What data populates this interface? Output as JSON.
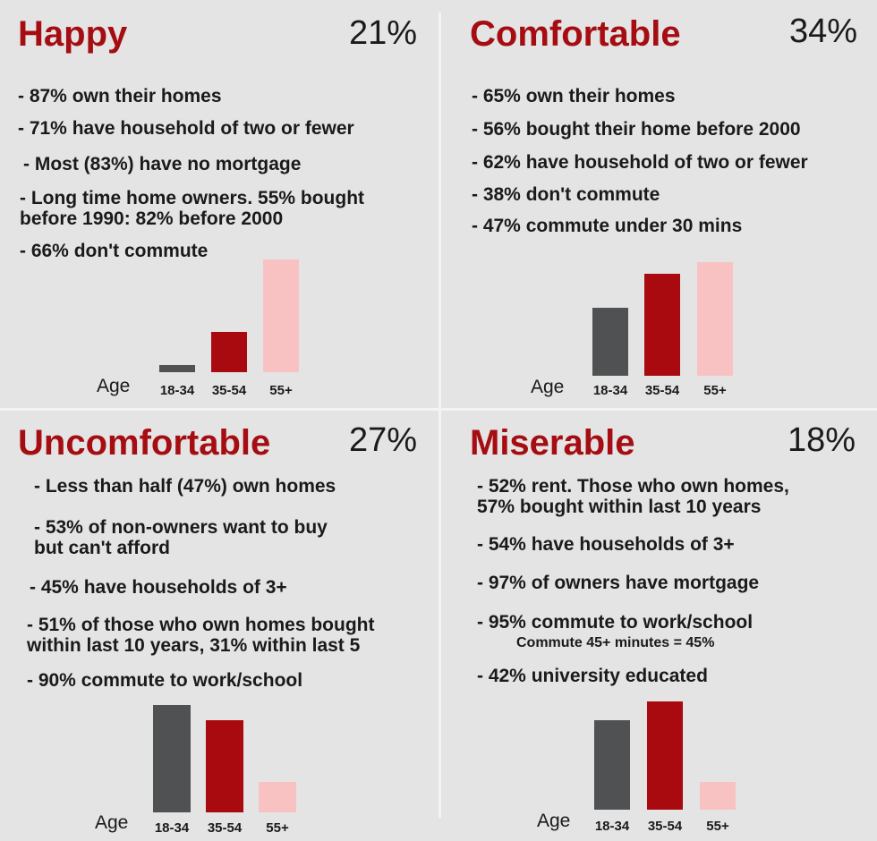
{
  "panels": [
    {
      "title": "Happy",
      "percent": "21%",
      "bullets": [
        "- 87% own their homes",
        "- 71% have household of two or fewer",
        "- Most (83%) have no mortgage",
        "- Long time home owners. 55% bought\nbefore 1990: 82% before 2000",
        "- 66% don't commute"
      ]
    },
    {
      "title": "Comfortable",
      "percent": "34%",
      "bullets": [
        "- 65% own their homes",
        "- 56% bought their home before 2000",
        "- 62% have household of two or fewer",
        "- 38% don't commute",
        "- 47% commute under 30 mins"
      ]
    },
    {
      "title": "Uncomfortable",
      "percent": "27%",
      "bullets": [
        "- Less than half (47%) own homes",
        "- 53% of non-owners want to buy\nbut can't afford",
        "- 45% have households of 3+",
        "- 51% of those who own homes bought\nwithin last 10 years, 31% within last 5",
        "- 90% commute to work/school"
      ]
    },
    {
      "title": "Miserable",
      "percent": "18%",
      "bullets": [
        "- 52% rent. Those who own homes,\n57% bought within last 10 years",
        "- 54% have households of 3+",
        "- 97% of owners have mortgage",
        "- 95% commute to work/school",
        "Commute 45+ minutes = 45%",
        "- 42% university educated"
      ]
    }
  ],
  "colors": {
    "title": "#a50d12",
    "bar_18_34": "#505152",
    "bar_35_54": "#a80a0f",
    "bar_55_plus": "#f9c2c2"
  },
  "chart_data": [
    {
      "type": "bar",
      "xlabel": "Age",
      "categories": [
        "18-34",
        "35-54",
        "55+"
      ],
      "values": [
        6,
        36,
        100
      ],
      "ylim": [
        0,
        100
      ]
    },
    {
      "type": "bar",
      "xlabel": "Age",
      "categories": [
        "18-34",
        "35-54",
        "55+"
      ],
      "values": [
        59,
        89,
        99
      ],
      "ylim": [
        0,
        100
      ]
    },
    {
      "type": "bar",
      "xlabel": "Age",
      "categories": [
        "18-34",
        "35-54",
        "55+"
      ],
      "values": [
        100,
        86,
        28
      ],
      "ylim": [
        0,
        100
      ]
    },
    {
      "type": "bar",
      "xlabel": "Age",
      "categories": [
        "18-34",
        "35-54",
        "55+"
      ],
      "values": [
        83,
        100,
        26
      ],
      "ylim": [
        0,
        100
      ]
    }
  ]
}
